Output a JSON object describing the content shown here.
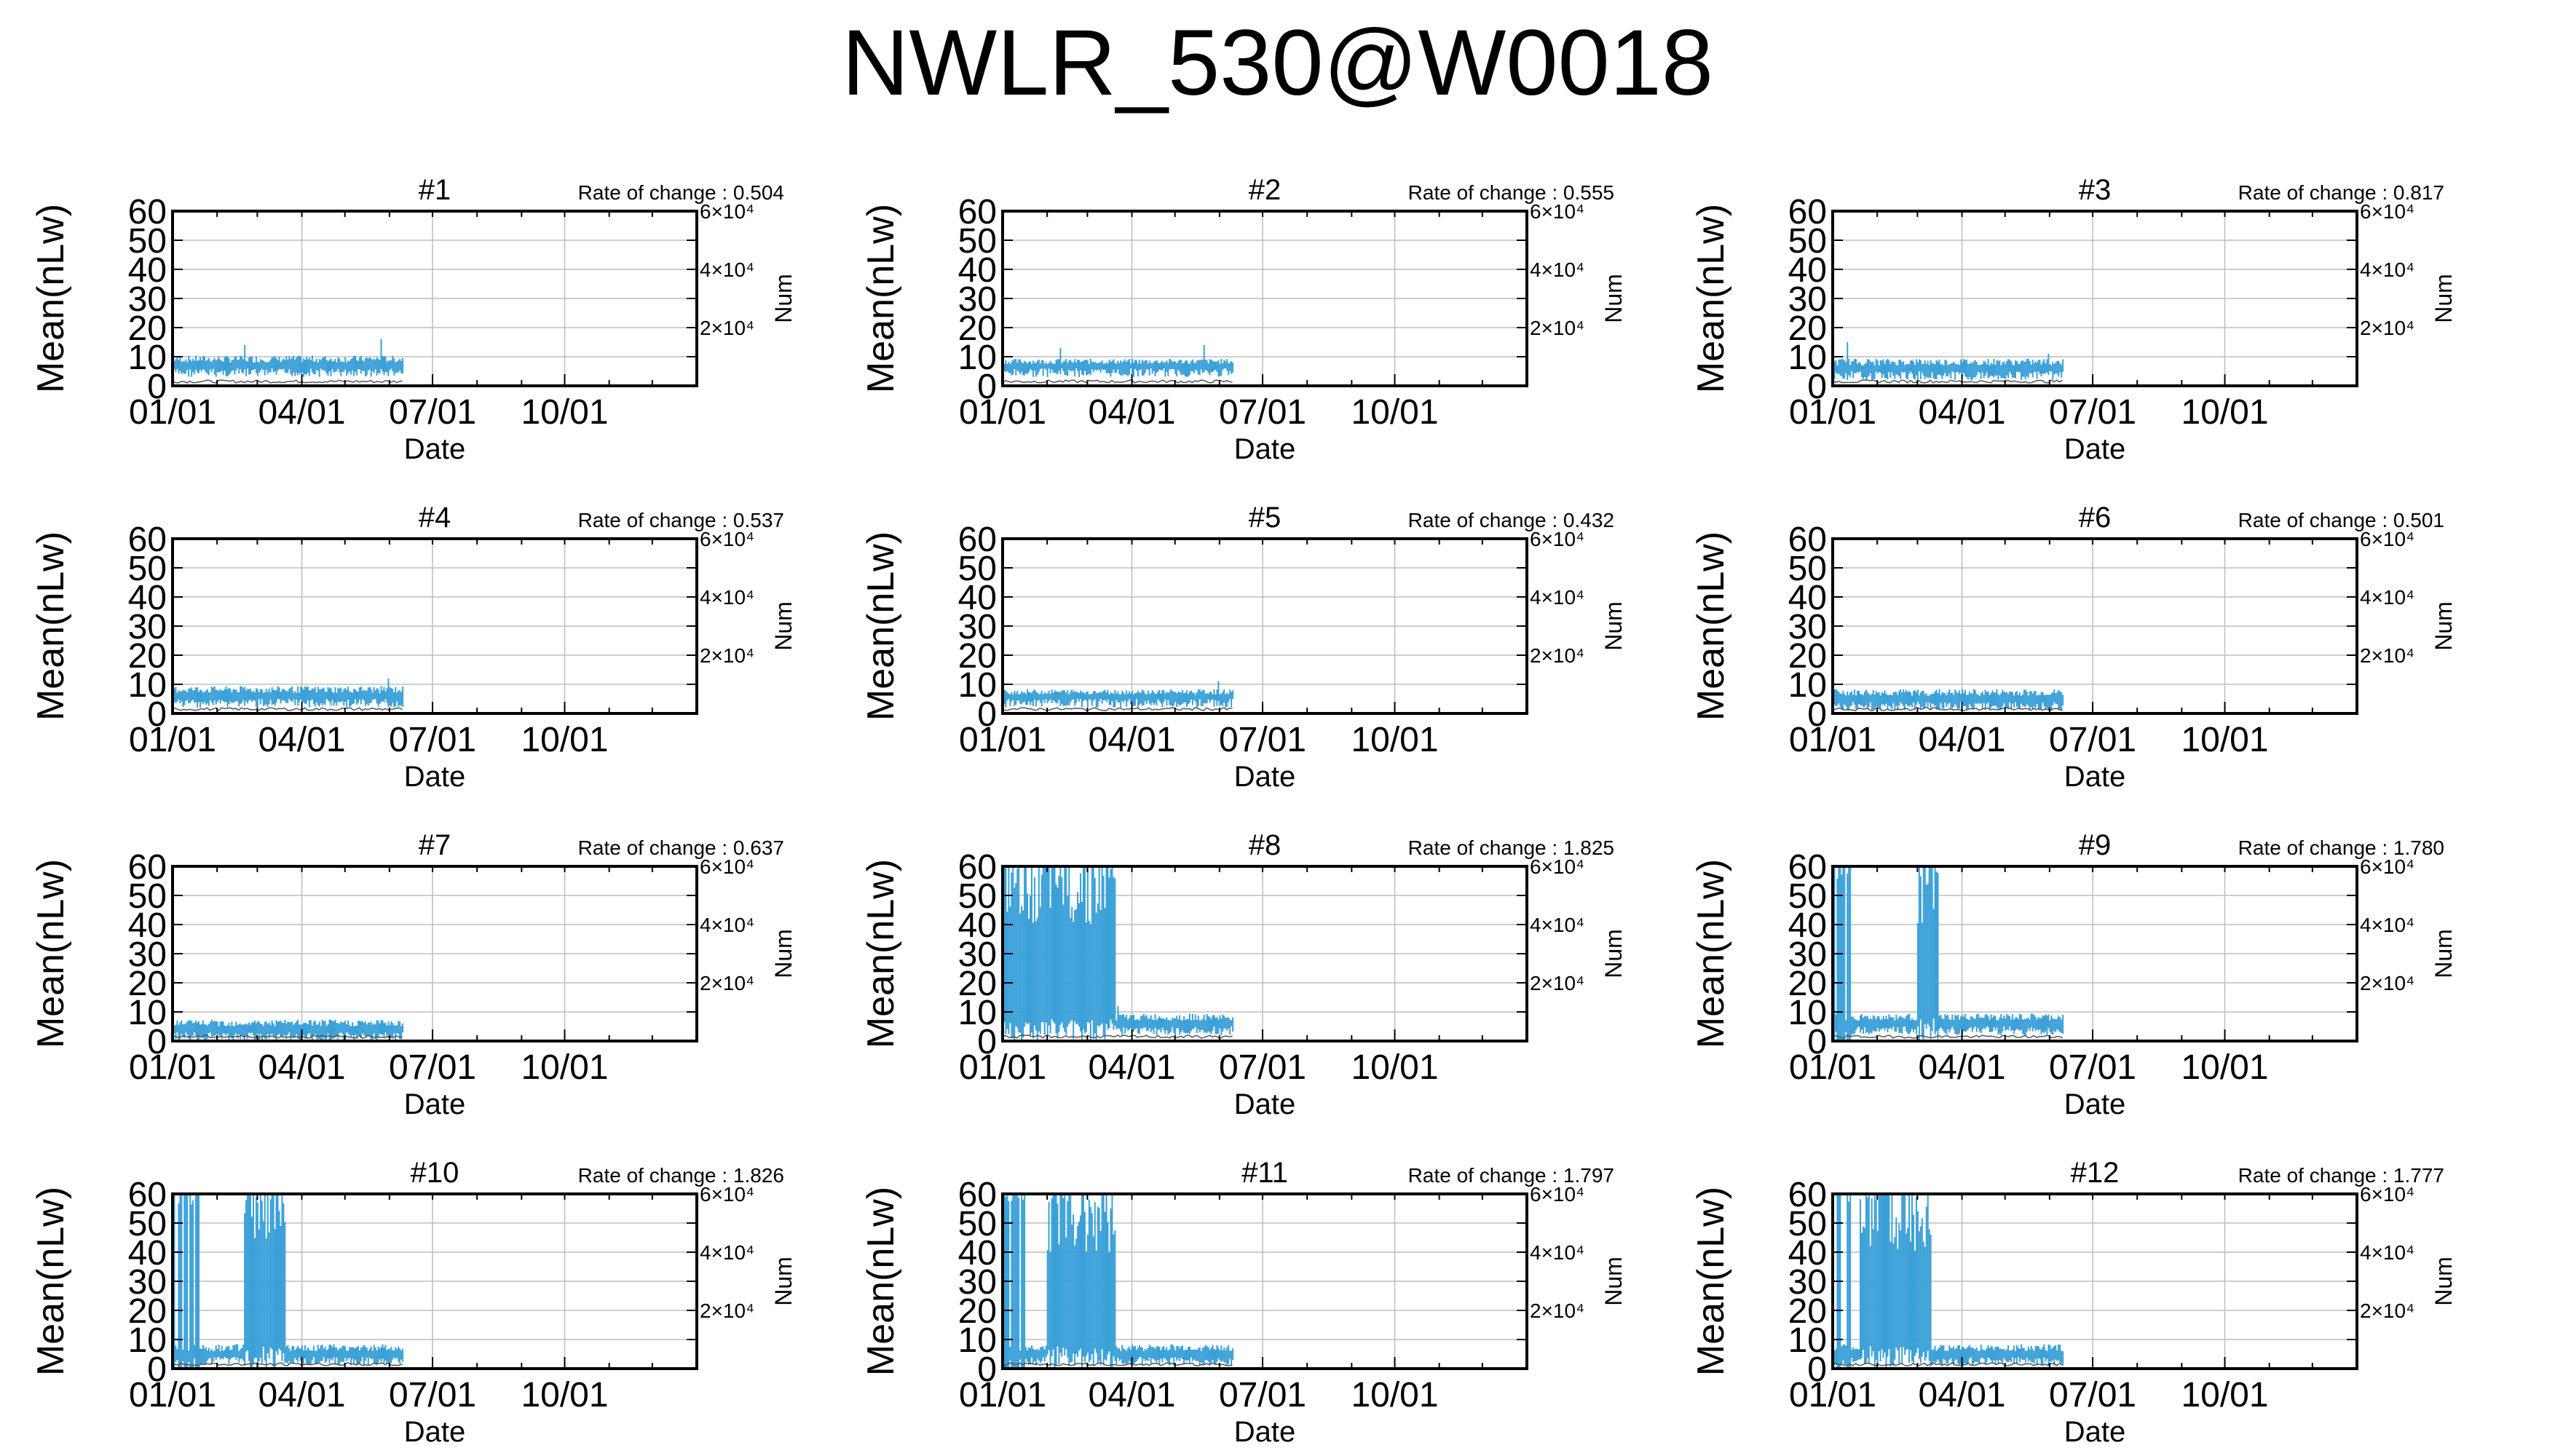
{
  "title": "NWLR_530@W0018",
  "colors": {
    "data": "#3aa0d8",
    "axis": "#000000",
    "grid": "#bdbdbd"
  },
  "chart_data": [
    {
      "type": "line",
      "panel": "#1",
      "rate_label": "Rate of change : 0.504",
      "ylabel": "Mean(nLw)",
      "y2label": "Num",
      "xlabel": "Date",
      "ylim": [
        0,
        60
      ],
      "yticks": [
        "60",
        "50",
        "40",
        "30",
        "20",
        "10",
        "0"
      ],
      "y2ticks": [
        "6×10⁴",
        "4×10⁴",
        "2×10⁴"
      ],
      "xticks": [
        "01/01",
        "04/01",
        "07/01",
        "10/01"
      ],
      "grid": true,
      "x_range": [
        "01/01",
        "12/31"
      ],
      "series": [
        {
          "data_start": "01/01",
          "data_end": "06/10",
          "typical": [
            6,
            10
          ],
          "spikes": [
            [
              50,
              14
            ],
            [
              145,
              16
            ]
          ]
        }
      ]
    },
    {
      "type": "line",
      "panel": "#2",
      "rate_label": "Rate of change : 0.555",
      "ylabel": "Mean(nLw)",
      "y2label": "Num",
      "xlabel": "Date",
      "ylim": [
        0,
        60
      ],
      "yticks": [
        "60",
        "50",
        "40",
        "30",
        "20",
        "10",
        "0"
      ],
      "y2ticks": [
        "6×10⁴",
        "4×10⁴",
        "2×10⁴"
      ],
      "xticks": [
        "01/01",
        "04/01",
        "07/01",
        "10/01"
      ],
      "grid": true,
      "x_range": [
        "01/01",
        "12/31"
      ],
      "series": [
        {
          "data_start": "01/01",
          "data_end": "06/10",
          "typical": [
            6,
            9
          ],
          "spikes": [
            [
              40,
              13
            ],
            [
              140,
              14
            ]
          ]
        }
      ]
    },
    {
      "type": "line",
      "panel": "#3",
      "rate_label": "Rate of change : 0.817",
      "ylabel": "Mean(nLw)",
      "y2label": "Num",
      "xlabel": "Date",
      "ylim": [
        0,
        60
      ],
      "yticks": [
        "60",
        "50",
        "40",
        "30",
        "20",
        "10",
        "0"
      ],
      "y2ticks": [
        "6×10⁴",
        "4×10⁴",
        "2×10⁴"
      ],
      "xticks": [
        "01/01",
        "04/01",
        "07/01",
        "10/01"
      ],
      "grid": true,
      "x_range": [
        "01/01",
        "12/31"
      ],
      "series": [
        {
          "data_start": "01/01",
          "data_end": "06/10",
          "typical": [
            5,
            9
          ],
          "spikes": [
            [
              10,
              15
            ],
            [
              150,
              11
            ]
          ]
        }
      ]
    },
    {
      "type": "line",
      "panel": "#4",
      "rate_label": "Rate of change : 0.537",
      "ylabel": "Mean(nLw)",
      "y2label": "Num",
      "xlabel": "Date",
      "ylim": [
        0,
        60
      ],
      "yticks": [
        "60",
        "50",
        "40",
        "30",
        "20",
        "10",
        "0"
      ],
      "y2ticks": [
        "6×10⁴",
        "4×10⁴",
        "2×10⁴"
      ],
      "xticks": [
        "01/01",
        "04/01",
        "07/01",
        "10/01"
      ],
      "grid": true,
      "x_range": [
        "01/01",
        "12/31"
      ],
      "series": [
        {
          "data_start": "01/01",
          "data_end": "06/10",
          "typical": [
            5,
            9
          ],
          "spikes": [
            [
              150,
              12
            ]
          ]
        }
      ]
    },
    {
      "type": "line",
      "panel": "#5",
      "rate_label": "Rate of change : 0.432",
      "ylabel": "Mean(nLw)",
      "y2label": "Num",
      "xlabel": "Date",
      "ylim": [
        0,
        60
      ],
      "yticks": [
        "60",
        "50",
        "40",
        "30",
        "20",
        "10",
        "0"
      ],
      "y2ticks": [
        "6×10⁴",
        "4×10⁴",
        "2×10⁴"
      ],
      "xticks": [
        "01/01",
        "04/01",
        "07/01",
        "10/01"
      ],
      "grid": true,
      "x_range": [
        "01/01",
        "12/31"
      ],
      "series": [
        {
          "data_start": "01/01",
          "data_end": "06/10",
          "typical": [
            5,
            8
          ],
          "spikes": [
            [
              150,
              11
            ]
          ]
        }
      ]
    },
    {
      "type": "line",
      "panel": "#6",
      "rate_label": "Rate of change : 0.501",
      "ylabel": "Mean(nLw)",
      "y2label": "Num",
      "xlabel": "Date",
      "ylim": [
        0,
        60
      ],
      "yticks": [
        "60",
        "50",
        "40",
        "30",
        "20",
        "10",
        "0"
      ],
      "y2ticks": [
        "6×10⁴",
        "4×10⁴",
        "2×10⁴"
      ],
      "xticks": [
        "01/01",
        "04/01",
        "07/01",
        "10/01"
      ],
      "grid": true,
      "x_range": [
        "01/01",
        "12/31"
      ],
      "series": [
        {
          "data_start": "01/01",
          "data_end": "06/10",
          "typical": [
            4,
            8
          ],
          "spikes": []
        }
      ]
    },
    {
      "type": "line",
      "panel": "#7",
      "rate_label": "Rate of change : 0.637",
      "ylabel": "Mean(nLw)",
      "y2label": "Num",
      "xlabel": "Date",
      "ylim": [
        0,
        60
      ],
      "yticks": [
        "60",
        "50",
        "40",
        "30",
        "20",
        "10",
        "0"
      ],
      "y2ticks": [
        "6×10⁴",
        "4×10⁴",
        "2×10⁴"
      ],
      "xticks": [
        "01/01",
        "04/01",
        "07/01",
        "10/01"
      ],
      "grid": true,
      "x_range": [
        "01/01",
        "12/31"
      ],
      "series": [
        {
          "data_start": "01/01",
          "data_end": "06/10",
          "typical": [
            3,
            7
          ],
          "spikes": []
        }
      ]
    },
    {
      "type": "line",
      "panel": "#8",
      "rate_label": "Rate of change : 1.825",
      "ylabel": "Mean(nLw)",
      "y2label": "Num",
      "xlabel": "Date",
      "ylim": [
        0,
        60
      ],
      "yticks": [
        "60",
        "50",
        "40",
        "30",
        "20",
        "10",
        "0"
      ],
      "y2ticks": [
        "6×10⁴",
        "4×10⁴",
        "2×10⁴"
      ],
      "xticks": [
        "01/01",
        "04/01",
        "07/01",
        "10/01"
      ],
      "grid": true,
      "x_range": [
        "01/01",
        "12/31"
      ],
      "series": [
        {
          "data_start": "01/01",
          "data_end": "06/10",
          "typical": [
            5,
            9
          ],
          "high_from": "01/01",
          "high_to": "03/20",
          "spikes": [
            [
              80,
              12
            ]
          ]
        }
      ]
    },
    {
      "type": "line",
      "panel": "#9",
      "rate_label": "Rate of change : 1.780",
      "ylabel": "Mean(nLw)",
      "y2label": "Num",
      "xlabel": "Date",
      "ylim": [
        0,
        60
      ],
      "yticks": [
        "60",
        "50",
        "40",
        "30",
        "20",
        "10",
        "0"
      ],
      "y2ticks": [
        "6×10⁴",
        "4×10⁴",
        "2×10⁴"
      ],
      "xticks": [
        "01/01",
        "04/01",
        "07/01",
        "10/01"
      ],
      "grid": true,
      "x_range": [
        "01/01",
        "12/31"
      ],
      "series": [
        {
          "data_start": "01/01",
          "data_end": "06/10",
          "typical": [
            5,
            9
          ],
          "high_from": "03/01",
          "high_to": "03/15",
          "early_spikes": [
            "01/01",
            "01/05",
            "01/08",
            "01/12"
          ],
          "spikes": []
        }
      ]
    },
    {
      "type": "line",
      "panel": "#10",
      "rate_label": "Rate of change : 1.826",
      "ylabel": "Mean(nLw)",
      "y2label": "Num",
      "xlabel": "Date",
      "ylim": [
        0,
        60
      ],
      "yticks": [
        "60",
        "50",
        "40",
        "30",
        "20",
        "10",
        "0"
      ],
      "y2ticks": [
        "6×10⁴",
        "4×10⁴",
        "2×10⁴"
      ],
      "xticks": [
        "01/01",
        "04/01",
        "07/01",
        "10/01"
      ],
      "grid": true,
      "x_range": [
        "01/01",
        "12/31"
      ],
      "series": [
        {
          "data_start": "01/01",
          "data_end": "06/10",
          "typical": [
            4,
            8
          ],
          "high_from": "02/20",
          "high_to": "03/20",
          "early_spikes": [
            "01/01",
            "01/06",
            "01/10",
            "01/14",
            "01/18"
          ],
          "spikes": []
        }
      ]
    },
    {
      "type": "line",
      "panel": "#11",
      "rate_label": "Rate of change : 1.797",
      "ylabel": "Mean(nLw)",
      "y2label": "Num",
      "xlabel": "Date",
      "ylim": [
        0,
        60
      ],
      "yticks": [
        "60",
        "50",
        "40",
        "30",
        "20",
        "10",
        "0"
      ],
      "y2ticks": [
        "6×10⁴",
        "4×10⁴",
        "2×10⁴"
      ],
      "xticks": [
        "01/01",
        "04/01",
        "07/01",
        "10/01"
      ],
      "grid": true,
      "x_range": [
        "01/01",
        "12/31"
      ],
      "series": [
        {
          "data_start": "01/01",
          "data_end": "06/10",
          "typical": [
            4,
            8
          ],
          "high_from": "02/01",
          "high_to": "03/20",
          "early_spikes": [
            "01/01",
            "01/04",
            "01/08",
            "01/11",
            "01/15"
          ],
          "spikes": []
        }
      ]
    },
    {
      "type": "line",
      "panel": "#12",
      "rate_label": "Rate of change : 1.777",
      "ylabel": "Mean(nLw)",
      "y2label": "Num",
      "xlabel": "Date",
      "ylim": [
        0,
        60
      ],
      "yticks": [
        "60",
        "50",
        "40",
        "30",
        "20",
        "10",
        "0"
      ],
      "y2ticks": [
        "6×10⁴",
        "4×10⁴",
        "2×10⁴"
      ],
      "xticks": [
        "01/01",
        "04/01",
        "07/01",
        "10/01"
      ],
      "grid": true,
      "x_range": [
        "01/01",
        "12/31"
      ],
      "series": [
        {
          "data_start": "01/01",
          "data_end": "06/10",
          "typical": [
            4,
            8
          ],
          "high_from": "01/20",
          "high_to": "03/10",
          "early_spikes": [
            "01/05",
            "01/12"
          ],
          "spikes": []
        }
      ]
    }
  ]
}
